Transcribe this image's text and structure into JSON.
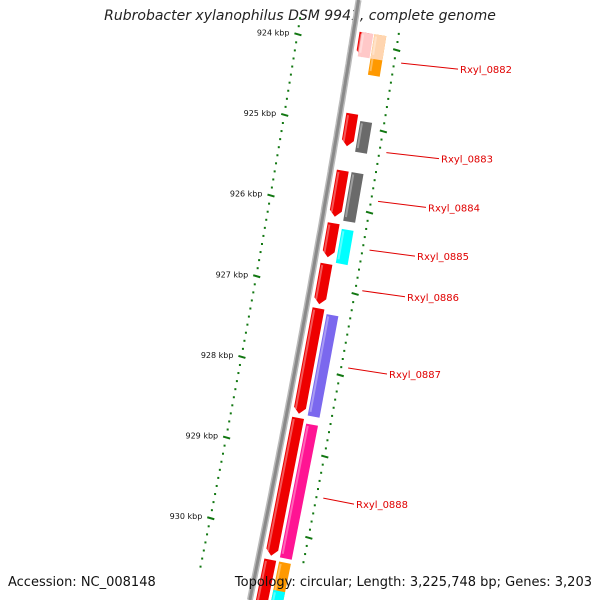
{
  "title": "Rubrobacter xylanophilus DSM 9941, complete genome",
  "accession_text": "Accession: NC_008148",
  "topology_text": "Topology: circular; Length: 3,225,748 bp; Genes: 3,203",
  "colors": {
    "backbone": "#8a8a8a",
    "tick": "#117711",
    "cds": "#ee0000",
    "label": "#e00000",
    "gray": "#6a6a6a",
    "orange": "#ff9900",
    "peach": "#ffd5b0",
    "pink_light": "#ffc8c8",
    "cyan": "#00ffff",
    "purple": "#7b68ee",
    "magenta": "#ff1493"
  },
  "ruler": {
    "unit": "kbp",
    "labels": [
      "924 kbp",
      "925 kbp",
      "926 kbp",
      "927 kbp",
      "928 kbp",
      "929 kbp",
      "930 kbp"
    ]
  },
  "gene_labels": [
    "Rxyl_0882",
    "Rxyl_0883",
    "Rxyl_0884",
    "Rxyl_0885",
    "Rxyl_0886",
    "Rxyl_0887",
    "Rxyl_0888"
  ],
  "features": [
    {
      "name": "Rxyl_0882",
      "start_kbp": 923.85,
      "end_kbp": 924.15,
      "color": "cds",
      "strand": "-"
    },
    {
      "name": "Rxyl_0882-cat",
      "start_kbp": 923.85,
      "end_kbp": 924.15,
      "color": "pink_light",
      "strand": ""
    },
    {
      "name": "Rxyl_0882-cog",
      "start_kbp": 923.85,
      "end_kbp": 924.35,
      "color": "orange",
      "strand": ""
    },
    {
      "name": "Rxyl_0882-cog2",
      "start_kbp": 923.85,
      "end_kbp": 924.15,
      "color": "peach",
      "strand": ""
    },
    {
      "name": "Rxyl_0883",
      "start_kbp": 924.85,
      "end_kbp": 925.25,
      "color": "cds",
      "strand": "-"
    },
    {
      "name": "Rxyl_0883-cog",
      "start_kbp": 924.92,
      "end_kbp": 925.3,
      "color": "gray",
      "strand": ""
    },
    {
      "name": "Rxyl_0884",
      "start_kbp": 925.55,
      "end_kbp": 926.12,
      "color": "cds",
      "strand": "-"
    },
    {
      "name": "Rxyl_0884-cog",
      "start_kbp": 925.55,
      "end_kbp": 926.15,
      "color": "gray",
      "strand": ""
    },
    {
      "name": "Rxyl_0885",
      "start_kbp": 926.2,
      "end_kbp": 926.62,
      "color": "cds",
      "strand": "-"
    },
    {
      "name": "Rxyl_0885-cog",
      "start_kbp": 926.25,
      "end_kbp": 926.67,
      "color": "cyan",
      "strand": ""
    },
    {
      "name": "Rxyl_0886",
      "start_kbp": 926.7,
      "end_kbp": 927.2,
      "color": "cds",
      "strand": "-"
    },
    {
      "name": "Rxyl_0887",
      "start_kbp": 927.25,
      "end_kbp": 928.55,
      "color": "cds",
      "strand": "-"
    },
    {
      "name": "Rxyl_0887-cog",
      "start_kbp": 927.3,
      "end_kbp": 928.55,
      "color": "purple",
      "strand": ""
    },
    {
      "name": "Rxyl_0888",
      "start_kbp": 928.6,
      "end_kbp": 930.3,
      "color": "cds",
      "strand": "-"
    },
    {
      "name": "Rxyl_0888-cog",
      "start_kbp": 928.65,
      "end_kbp": 930.3,
      "color": "magenta",
      "strand": ""
    },
    {
      "name": "next-cds",
      "start_kbp": 930.35,
      "end_kbp": 931.0,
      "color": "cds",
      "strand": "-"
    },
    {
      "name": "next-cog",
      "start_kbp": 930.35,
      "end_kbp": 931.0,
      "color": "orange",
      "strand": ""
    },
    {
      "name": "next-cog2",
      "start_kbp": 930.7,
      "end_kbp": 931.0,
      "color": "cyan",
      "strand": ""
    }
  ]
}
